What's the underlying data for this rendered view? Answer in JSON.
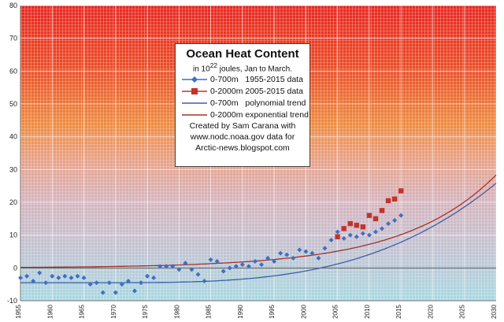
{
  "chart_data": {
    "type": "line",
    "title": "Ocean Heat Content",
    "subtitle_pre": "in 10",
    "subtitle_sup": "22",
    "subtitle_post": " joules, Jan to March.",
    "xlim": [
      1955,
      2030
    ],
    "ylim": [
      -10,
      80
    ],
    "y_ticks": [
      -10,
      0,
      10,
      20,
      30,
      40,
      50,
      60,
      70,
      80
    ],
    "x_ticks": [
      1955,
      1960,
      1965,
      1970,
      1975,
      1980,
      1985,
      1990,
      1995,
      2000,
      2005,
      2010,
      2015,
      2020,
      2025,
      2030
    ],
    "series": [
      {
        "name": "0-700m   1955-2015 data",
        "marker": "diamond",
        "color": "#3f6ec6",
        "x": [
          1955,
          1956,
          1957,
          1958,
          1959,
          1960,
          1961,
          1962,
          1963,
          1964,
          1965,
          1966,
          1967,
          1968,
          1969,
          1970,
          1971,
          1972,
          1973,
          1974,
          1975,
          1976,
          1977,
          1978,
          1979,
          1980,
          1981,
          1982,
          1983,
          1984,
          1985,
          1986,
          1987,
          1988,
          1989,
          1990,
          1991,
          1992,
          1993,
          1994,
          1995,
          1996,
          1997,
          1998,
          1999,
          2000,
          2001,
          2002,
          2003,
          2004,
          2005,
          2006,
          2007,
          2008,
          2009,
          2010,
          2011,
          2012,
          2013,
          2014,
          2015
        ],
        "values": [
          -3.0,
          -2.5,
          -4.0,
          -1.5,
          -4.5,
          -2.5,
          -3.0,
          -2.5,
          -3.0,
          -2.5,
          -3.0,
          -5.0,
          -4.5,
          -7.5,
          -4.5,
          -7.5,
          -5.0,
          -4.0,
          -7.0,
          -4.5,
          -2.5,
          -3.0,
          0.5,
          0.5,
          0.5,
          -0.5,
          1.5,
          -0.5,
          -2.0,
          -4.0,
          2.5,
          2.0,
          -1.0,
          0.0,
          0.5,
          1.0,
          0.5,
          2.0,
          1.0,
          3.0,
          2.0,
          4.5,
          4.0,
          3.0,
          5.5,
          5.0,
          4.5,
          3.0,
          6.0,
          8.5,
          11.0,
          9.0,
          10.0,
          9.5,
          10.5,
          10.0,
          11.0,
          12.0,
          13.5,
          14.5,
          16.0
        ]
      },
      {
        "name": "0-2000m 2005-2015 data",
        "marker": "square",
        "color": "#c0342c",
        "x": [
          2005,
          2006,
          2007,
          2008,
          2009,
          2010,
          2011,
          2012,
          2013,
          2014,
          2015
        ],
        "values": [
          9.5,
          12.0,
          13.5,
          13.0,
          12.5,
          16.0,
          15.0,
          17.5,
          20.5,
          21.0,
          23.5
        ]
      },
      {
        "name": "0-700m   polynomial trend",
        "marker": "line",
        "color": "#3a5fa8",
        "formula": "polynomial"
      },
      {
        "name": "0-2000m exponential trend",
        "marker": "line",
        "color": "#a33228",
        "formula": "exponential"
      }
    ],
    "credit_lines": [
      "Created by Sam Carana with",
      "www.nodc.noaa.gov data for",
      "Arctic-news.blogspot.com"
    ],
    "legend_placement": "top-center"
  }
}
